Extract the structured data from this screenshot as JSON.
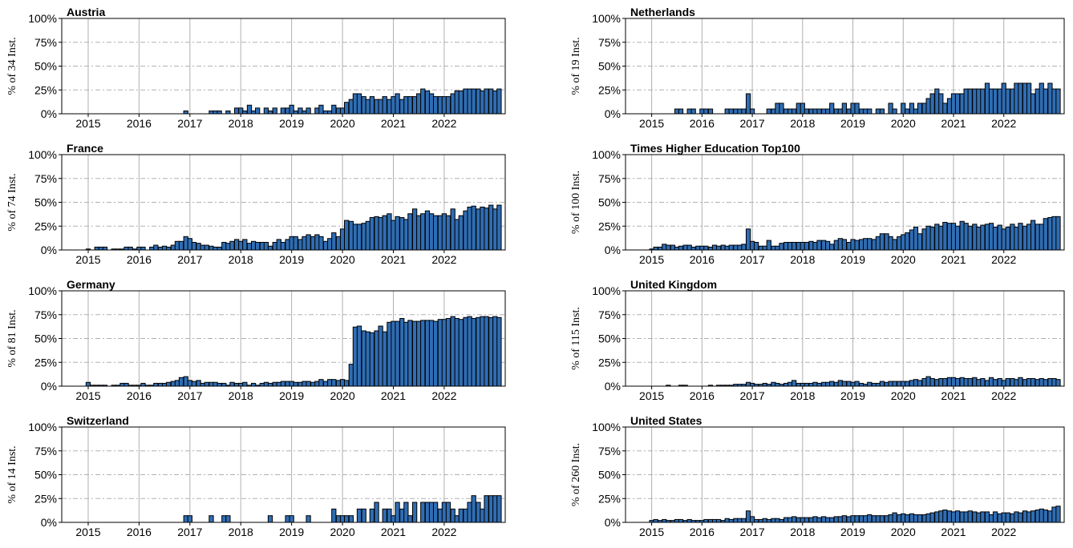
{
  "chart_data": {
    "type": "bar",
    "x": [
      2015.0,
      2015.08,
      2015.17,
      2015.25,
      2015.33,
      2015.42,
      2015.5,
      2015.58,
      2015.67,
      2015.75,
      2015.83,
      2015.92,
      2016.0,
      2016.08,
      2016.17,
      2016.25,
      2016.33,
      2016.42,
      2016.5,
      2016.58,
      2016.67,
      2016.75,
      2016.83,
      2016.92,
      2017.0,
      2017.08,
      2017.17,
      2017.25,
      2017.33,
      2017.42,
      2017.5,
      2017.58,
      2017.67,
      2017.75,
      2017.83,
      2017.92,
      2018.0,
      2018.08,
      2018.17,
      2018.25,
      2018.33,
      2018.42,
      2018.5,
      2018.58,
      2018.67,
      2018.75,
      2018.83,
      2018.92,
      2019.0,
      2019.08,
      2019.17,
      2019.25,
      2019.33,
      2019.42,
      2019.5,
      2019.58,
      2019.67,
      2019.75,
      2019.83,
      2019.92,
      2020.0,
      2020.08,
      2020.17,
      2020.25,
      2020.33,
      2020.42,
      2020.5,
      2020.58,
      2020.67,
      2020.75,
      2020.83,
      2020.92,
      2021.0,
      2021.08,
      2021.17,
      2021.25,
      2021.33,
      2021.42,
      2021.5,
      2021.58,
      2021.67,
      2021.75,
      2021.83,
      2021.92,
      2022.0,
      2022.08,
      2022.17,
      2022.25,
      2022.33,
      2022.42,
      2022.5,
      2022.58,
      2022.67,
      2022.75,
      2022.83,
      2022.92,
      2023.0,
      2023.08
    ],
    "xlim": [
      2014.48,
      2023.2
    ],
    "xticks": [
      2015,
      2016,
      2017,
      2018,
      2019,
      2020,
      2021,
      2022
    ],
    "ylim": [
      0,
      100
    ],
    "yticks": [
      {
        "value": 0,
        "label": "0%"
      },
      {
        "value": 25,
        "label": "25%"
      },
      {
        "value": 50,
        "label": "50%"
      },
      {
        "value": 75,
        "label": "75%"
      },
      {
        "value": 100,
        "label": "100%"
      }
    ],
    "grid": true,
    "color": "#2f6db3",
    "edgecolor": "#000000",
    "panels": [
      {
        "title": "Austria",
        "ylabel": "% of 34 Inst.",
        "values": [
          0,
          0,
          0,
          0,
          0,
          0,
          0,
          0,
          0,
          0,
          0,
          0,
          0,
          0,
          0,
          0,
          0,
          0,
          0,
          0,
          0,
          0,
          0,
          3,
          0,
          0,
          0,
          0,
          0,
          3,
          3,
          3,
          0,
          3,
          0,
          6,
          6,
          3,
          9,
          3,
          6,
          0,
          6,
          3,
          6,
          0,
          6,
          6,
          9,
          3,
          6,
          3,
          6,
          0,
          6,
          9,
          3,
          3,
          9,
          6,
          6,
          12,
          15,
          21,
          21,
          18,
          15,
          18,
          15,
          15,
          18,
          15,
          18,
          21,
          15,
          18,
          18,
          18,
          21,
          26,
          24,
          21,
          18,
          18,
          18,
          18,
          21,
          24,
          24,
          26,
          26,
          26,
          26,
          24,
          26,
          26,
          24,
          26
        ]
      },
      {
        "title": "Netherlands",
        "ylabel": "% of 19 Inst.",
        "values": [
          0,
          0,
          0,
          0,
          0,
          0,
          5,
          5,
          0,
          5,
          5,
          0,
          5,
          5,
          5,
          0,
          0,
          0,
          5,
          5,
          5,
          5,
          5,
          21,
          5,
          0,
          0,
          0,
          5,
          5,
          11,
          11,
          5,
          5,
          5,
          11,
          11,
          5,
          5,
          5,
          5,
          5,
          5,
          11,
          5,
          5,
          11,
          5,
          11,
          11,
          5,
          5,
          5,
          0,
          5,
          5,
          0,
          11,
          5,
          0,
          11,
          5,
          11,
          5,
          11,
          11,
          16,
          21,
          26,
          21,
          11,
          16,
          21,
          21,
          21,
          26,
          26,
          26,
          26,
          26,
          32,
          26,
          26,
          26,
          32,
          26,
          26,
          32,
          32,
          32,
          32,
          21,
          26,
          32,
          26,
          32,
          26,
          26
        ]
      },
      {
        "title": "France",
        "ylabel": "% of 74 Inst.",
        "values": [
          1,
          0,
          3,
          3,
          3,
          0,
          1,
          1,
          1,
          3,
          3,
          1,
          3,
          3,
          0,
          3,
          5,
          3,
          4,
          3,
          5,
          9,
          9,
          14,
          12,
          8,
          7,
          5,
          5,
          4,
          3,
          3,
          8,
          7,
          9,
          11,
          9,
          11,
          7,
          9,
          8,
          8,
          8,
          4,
          8,
          11,
          8,
          11,
          14,
          14,
          11,
          14,
          16,
          14,
          16,
          14,
          9,
          12,
          18,
          14,
          22,
          31,
          30,
          27,
          27,
          28,
          30,
          34,
          35,
          34,
          36,
          38,
          31,
          35,
          34,
          32,
          38,
          43,
          36,
          38,
          41,
          38,
          36,
          36,
          38,
          36,
          43,
          32,
          36,
          41,
          45,
          46,
          43,
          45,
          44,
          47,
          43,
          47
        ]
      },
      {
        "title": "Times Higher Education Top100",
        "ylabel": "% of 100 Inst.",
        "values": [
          1,
          3,
          3,
          6,
          5,
          5,
          3,
          4,
          5,
          5,
          3,
          4,
          4,
          4,
          3,
          5,
          4,
          5,
          4,
          5,
          5,
          5,
          6,
          22,
          9,
          8,
          4,
          4,
          10,
          4,
          4,
          7,
          8,
          8,
          8,
          8,
          8,
          8,
          9,
          8,
          10,
          10,
          9,
          6,
          10,
          12,
          11,
          8,
          11,
          10,
          11,
          12,
          12,
          11,
          14,
          17,
          17,
          14,
          11,
          14,
          16,
          18,
          21,
          24,
          17,
          22,
          25,
          24,
          27,
          25,
          29,
          28,
          28,
          25,
          30,
          28,
          25,
          27,
          24,
          26,
          27,
          28,
          24,
          26,
          22,
          24,
          27,
          24,
          28,
          25,
          27,
          31,
          27,
          27,
          33,
          34,
          35,
          35
        ]
      },
      {
        "title": "Germany",
        "ylabel": "% of 81 Inst.",
        "values": [
          4,
          1,
          1,
          1,
          1,
          0,
          1,
          1,
          3,
          3,
          1,
          1,
          1,
          3,
          1,
          1,
          3,
          3,
          3,
          4,
          5,
          6,
          9,
          10,
          6,
          5,
          6,
          3,
          4,
          4,
          4,
          3,
          3,
          1,
          4,
          3,
          3,
          4,
          1,
          3,
          1,
          3,
          4,
          3,
          4,
          4,
          5,
          5,
          5,
          4,
          4,
          5,
          5,
          4,
          5,
          7,
          5,
          7,
          7,
          6,
          7,
          6,
          23,
          62,
          63,
          58,
          57,
          56,
          58,
          63,
          57,
          67,
          68,
          68,
          71,
          67,
          69,
          68,
          68,
          69,
          69,
          69,
          68,
          70,
          70,
          71,
          73,
          71,
          70,
          72,
          73,
          71,
          72,
          73,
          73,
          72,
          73,
          72
        ]
      },
      {
        "title": "United Kingdom",
        "ylabel": "% of 115 Inst.",
        "values": [
          0,
          0,
          0,
          0,
          1,
          0,
          0,
          1,
          1,
          0,
          0,
          0,
          0,
          0,
          1,
          0,
          1,
          1,
          1,
          1,
          2,
          2,
          2,
          4,
          3,
          2,
          2,
          3,
          2,
          4,
          3,
          2,
          3,
          4,
          6,
          3,
          3,
          3,
          3,
          4,
          3,
          4,
          4,
          5,
          4,
          6,
          5,
          5,
          4,
          5,
          3,
          2,
          4,
          3,
          3,
          5,
          4,
          5,
          5,
          5,
          5,
          5,
          6,
          7,
          6,
          8,
          10,
          8,
          7,
          8,
          8,
          9,
          9,
          8,
          9,
          8,
          8,
          9,
          7,
          8,
          6,
          9,
          7,
          8,
          6,
          8,
          8,
          7,
          9,
          7,
          8,
          8,
          7,
          8,
          7,
          8,
          8,
          7
        ]
      },
      {
        "title": "Switzerland",
        "ylabel": "% of 14 Inst.",
        "values": [
          0,
          0,
          0,
          0,
          0,
          0,
          0,
          0,
          0,
          0,
          0,
          0,
          0,
          0,
          0,
          0,
          0,
          0,
          0,
          0,
          0,
          0,
          0,
          7,
          7,
          0,
          0,
          0,
          0,
          7,
          0,
          0,
          7,
          7,
          0,
          0,
          0,
          0,
          0,
          0,
          0,
          0,
          0,
          7,
          0,
          0,
          0,
          7,
          7,
          0,
          0,
          0,
          7,
          0,
          0,
          0,
          0,
          0,
          14,
          7,
          7,
          7,
          7,
          0,
          14,
          14,
          0,
          14,
          21,
          0,
          14,
          14,
          7,
          21,
          14,
          21,
          7,
          21,
          0,
          21,
          21,
          21,
          21,
          14,
          21,
          21,
          14,
          7,
          14,
          14,
          21,
          28,
          21,
          14,
          28,
          28,
          28,
          28
        ]
      },
      {
        "title": "United States",
        "ylabel": "% of 260 Inst.",
        "values": [
          2,
          3,
          2,
          3,
          2,
          2,
          3,
          3,
          2,
          3,
          2,
          2,
          2,
          3,
          3,
          3,
          3,
          2,
          4,
          3,
          4,
          4,
          4,
          12,
          6,
          3,
          3,
          4,
          3,
          4,
          4,
          3,
          5,
          5,
          6,
          5,
          5,
          5,
          5,
          6,
          5,
          6,
          5,
          5,
          6,
          6,
          7,
          6,
          7,
          7,
          7,
          7,
          8,
          7,
          7,
          7,
          7,
          8,
          10,
          8,
          9,
          8,
          9,
          8,
          8,
          8,
          9,
          10,
          11,
          12,
          13,
          12,
          11,
          12,
          11,
          11,
          12,
          11,
          10,
          11,
          11,
          8,
          11,
          9,
          10,
          10,
          9,
          11,
          10,
          12,
          11,
          12,
          13,
          14,
          13,
          12,
          16,
          17
        ]
      }
    ]
  }
}
